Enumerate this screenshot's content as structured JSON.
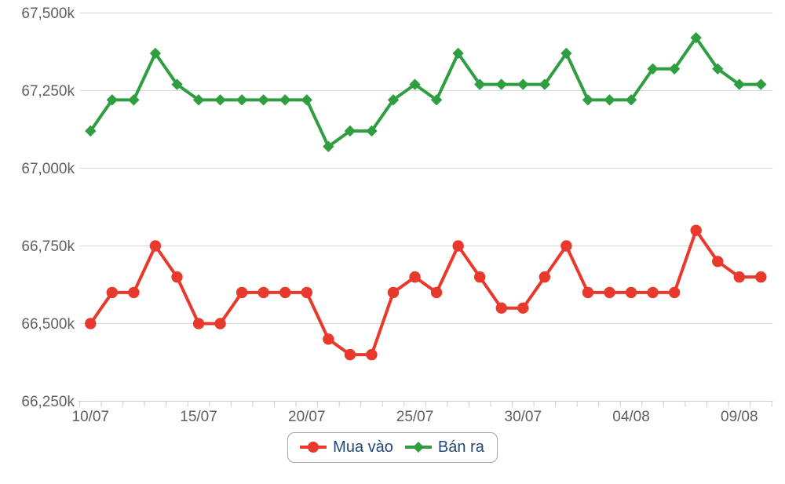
{
  "chart_data": {
    "type": "line",
    "title": "",
    "xlabel": "",
    "ylabel": "",
    "grid": true,
    "legend_position": "bottom-center",
    "n_points": 32,
    "ylim": [
      66250,
      67500
    ],
    "y_ticks": [
      {
        "value": 67500,
        "label": "67,500k"
      },
      {
        "value": 67250,
        "label": "67,250k"
      },
      {
        "value": 67000,
        "label": "67,000k"
      },
      {
        "value": 66750,
        "label": "66,750k"
      },
      {
        "value": 66500,
        "label": "66,500k"
      },
      {
        "value": 66250,
        "label": "66,250k"
      }
    ],
    "x_tick_labels": [
      {
        "index": 0,
        "label": "10/07"
      },
      {
        "index": 5,
        "label": "15/07"
      },
      {
        "index": 10,
        "label": "20/07"
      },
      {
        "index": 15,
        "label": "25/07"
      },
      {
        "index": 20,
        "label": "30/07"
      },
      {
        "index": 25,
        "label": "04/08"
      },
      {
        "index": 30,
        "label": "09/08"
      }
    ],
    "series": [
      {
        "name": "Mua vào",
        "color": "#e8392c",
        "marker": "circle",
        "values": [
          66500,
          66600,
          66600,
          66750,
          66650,
          66500,
          66500,
          66600,
          66600,
          66600,
          66600,
          66450,
          66400,
          66400,
          66600,
          66650,
          66600,
          66750,
          66650,
          66550,
          66550,
          66650,
          66750,
          66600,
          66600,
          66600,
          66600,
          66600,
          66800,
          66700,
          66650,
          66650
        ]
      },
      {
        "name": "Bán ra",
        "color": "#2f9e41",
        "marker": "diamond",
        "values": [
          67120,
          67220,
          67220,
          67370,
          67270,
          67220,
          67220,
          67220,
          67220,
          67220,
          67220,
          67070,
          67120,
          67120,
          67220,
          67270,
          67220,
          67370,
          67270,
          67270,
          67270,
          67270,
          67370,
          67220,
          67220,
          67220,
          67320,
          67320,
          67420,
          67320,
          67270,
          67270
        ]
      }
    ]
  },
  "colors": {
    "background": "#ffffff",
    "grid_line": "#d8d8d8",
    "axis_line": "#c0d0e0",
    "tick": "#c0d0e0",
    "axis_label": "#606060",
    "legend_text": "#234a77",
    "legend_border": "#a7a7a7",
    "series_buy": "#e8392c",
    "series_sell": "#2f9e41"
  }
}
